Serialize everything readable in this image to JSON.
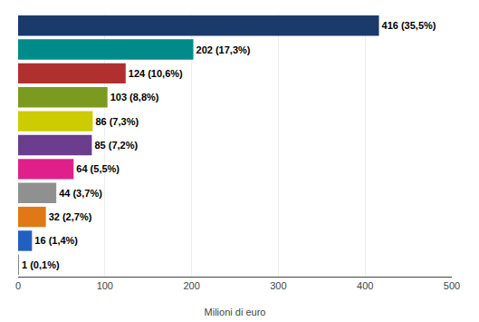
{
  "chart_data": {
    "type": "bar",
    "orientation": "horizontal",
    "categories": [
      null,
      null,
      null,
      null,
      null,
      null,
      null,
      null,
      null,
      null,
      null
    ],
    "values": [
      416,
      202,
      124,
      103,
      86,
      85,
      64,
      44,
      32,
      16,
      1
    ],
    "value_labels": [
      "416 (35,5%)",
      "202 (17,3%)",
      "124 (10,6%)",
      "103 (8,8%)",
      "86 (7,3%)",
      "85 (7,2%)",
      "64 (5,5%)",
      "44 (3,7%)",
      "32 (2,7%)",
      "16 (1,4%)",
      "1 (0,1%)"
    ],
    "colors": [
      "#1a3a6b",
      "#008b8b",
      "#b03030",
      "#7a9a20",
      "#cccc00",
      "#6a3d8f",
      "#e0208a",
      "#909090",
      "#e07818",
      "#2060c0",
      "#888888"
    ],
    "xlabel": "Milioni di euro",
    "xlim": [
      0,
      500
    ],
    "xticks": [
      0,
      100,
      200,
      300,
      400,
      500
    ],
    "grid": true,
    "data_labels": true,
    "tick_labels": "x"
  }
}
